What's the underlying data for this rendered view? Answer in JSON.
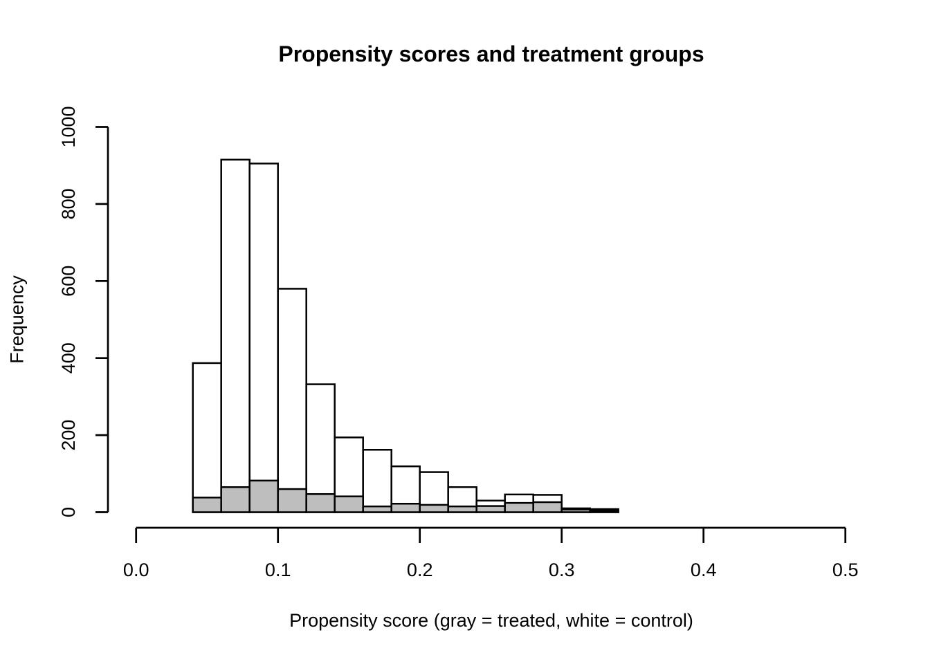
{
  "title": "Propensity scores and treatment groups",
  "chart_data": {
    "type": "bar",
    "subtype": "overlaid-histogram",
    "title": "Propensity scores and treatment groups",
    "xlabel": "Propensity score (gray = treated, white = control)",
    "ylabel": "Frequency",
    "xlim": [
      0.0,
      0.5
    ],
    "ylim": [
      0,
      1000
    ],
    "grid": false,
    "legend": "none (encoded in xlabel: gray = treated, white = control)",
    "x_ticks": [
      0.0,
      0.1,
      0.2,
      0.3,
      0.4,
      0.5
    ],
    "x_tick_labels": [
      "0.0",
      "0.1",
      "0.2",
      "0.3",
      "0.4",
      "0.5"
    ],
    "y_ticks": [
      0,
      200,
      400,
      600,
      800,
      1000
    ],
    "y_tick_labels": [
      "0",
      "200",
      "400",
      "600",
      "800",
      "1000"
    ],
    "bin_width": 0.02,
    "bin_edges": [
      0.04,
      0.06,
      0.08,
      0.1,
      0.12,
      0.14,
      0.16,
      0.18,
      0.2,
      0.22,
      0.24,
      0.26,
      0.28,
      0.3,
      0.32,
      0.34
    ],
    "series": [
      {
        "name": "control",
        "fill_color": "#FFFFFF",
        "values": [
          387,
          915,
          905,
          580,
          332,
          194,
          162,
          119,
          104,
          65,
          30,
          46,
          45,
          10,
          8
        ]
      },
      {
        "name": "treated",
        "fill_color": "#BEBEBE",
        "values": [
          38,
          65,
          82,
          60,
          47,
          41,
          15,
          22,
          19,
          15,
          16,
          24,
          26,
          7,
          4
        ]
      }
    ],
    "outline_color": "#000000"
  }
}
